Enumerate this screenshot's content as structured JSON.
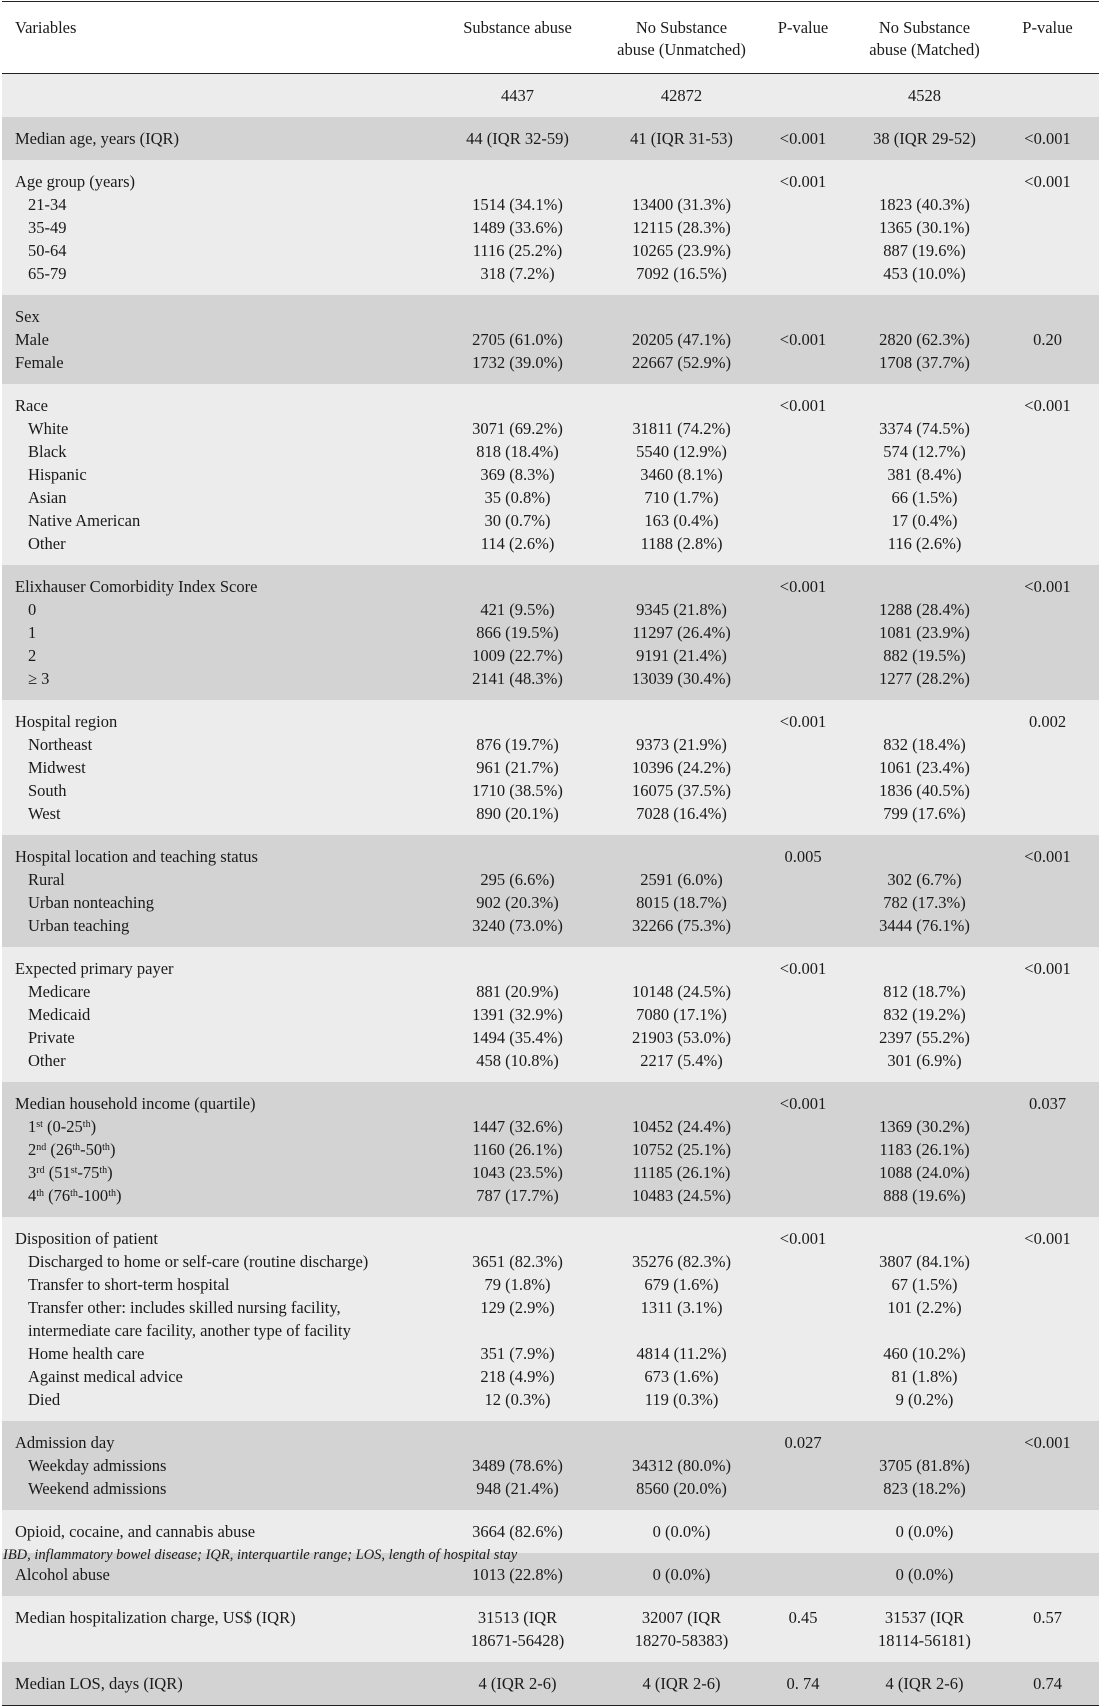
{
  "header": {
    "variables": "Variables",
    "sa": "Substance abuse",
    "nsu_line1": "No Substance",
    "nsu_line2": "abuse (Unmatched)",
    "p1": "P-value",
    "nsm_line1": "No Substance",
    "nsm_line2": "abuse (Matched)",
    "p2": "P-value"
  },
  "counts": {
    "sa": "4437",
    "nsu": "42872",
    "nsm": "4528"
  },
  "rows": [
    {
      "label": "Median age, years (IQR)",
      "sa": "44 (IQR 32-59)",
      "nsu": "41 (IQR 31-53)",
      "p1": "<0.001",
      "nsm": "38 (IQR 29-52)",
      "p2": "<0.001"
    },
    {
      "label": "Age group (years)",
      "sa": "",
      "nsu": "",
      "p1": "<0.001",
      "nsm": "",
      "p2": "<0.001"
    },
    {
      "label": "21-34",
      "sa": "1514 (34.1%)",
      "nsu": "13400 (31.3%)",
      "p1": "",
      "nsm": "1823 (40.3%)",
      "p2": ""
    },
    {
      "label": "35-49",
      "sa": "1489 (33.6%)",
      "nsu": "12115 (28.3%)",
      "p1": "",
      "nsm": "1365 (30.1%)",
      "p2": ""
    },
    {
      "label": "50-64",
      "sa": "1116 (25.2%)",
      "nsu": "10265 (23.9%)",
      "p1": "",
      "nsm": "887 (19.6%)",
      "p2": ""
    },
    {
      "label": "65-79",
      "sa": "318 (7.2%)",
      "nsu": "7092 (16.5%)",
      "p1": "",
      "nsm": "453 (10.0%)",
      "p2": ""
    },
    {
      "label": "Sex",
      "sa": "",
      "nsu": "",
      "p1": "",
      "nsm": "",
      "p2": ""
    },
    {
      "label": "Male",
      "sa": "2705 (61.0%)",
      "nsu": "20205 (47.1%)",
      "p1": "<0.001",
      "nsm": "2820 (62.3%)",
      "p2": "0.20"
    },
    {
      "label": "Female",
      "sa": "1732 (39.0%)",
      "nsu": "22667 (52.9%)",
      "p1": "",
      "nsm": "1708 (37.7%)",
      "p2": ""
    },
    {
      "label": "Race",
      "sa": "",
      "nsu": "",
      "p1": "<0.001",
      "nsm": "",
      "p2": "<0.001"
    },
    {
      "label": "White",
      "sa": "3071 (69.2%)",
      "nsu": "31811 (74.2%)",
      "p1": "",
      "nsm": "3374 (74.5%)",
      "p2": ""
    },
    {
      "label": "Black",
      "sa": "818 (18.4%)",
      "nsu": "5540 (12.9%)",
      "p1": "",
      "nsm": "574 (12.7%)",
      "p2": ""
    },
    {
      "label": "Hispanic",
      "sa": "369 (8.3%)",
      "nsu": "3460 (8.1%)",
      "p1": "",
      "nsm": "381 (8.4%)",
      "p2": ""
    },
    {
      "label": "Asian",
      "sa": "35 (0.8%)",
      "nsu": "710 (1.7%)",
      "p1": "",
      "nsm": "66 (1.5%)",
      "p2": ""
    },
    {
      "label": "Native American",
      "sa": "30 (0.7%)",
      "nsu": "163 (0.4%)",
      "p1": "",
      "nsm": "17 (0.4%)",
      "p2": ""
    },
    {
      "label": "Other",
      "sa": "114 (2.6%)",
      "nsu": "1188 (2.8%)",
      "p1": "",
      "nsm": "116 (2.6%)",
      "p2": ""
    },
    {
      "label": "Elixhauser Comorbidity Index Score",
      "sa": "",
      "nsu": "",
      "p1": "<0.001",
      "nsm": "",
      "p2": "<0.001"
    },
    {
      "label": "0",
      "sa": "421 (9.5%)",
      "nsu": "9345 (21.8%)",
      "p1": "",
      "nsm": "1288 (28.4%)",
      "p2": ""
    },
    {
      "label": "1",
      "sa": "866 (19.5%)",
      "nsu": "11297 (26.4%)",
      "p1": "",
      "nsm": "1081 (23.9%)",
      "p2": ""
    },
    {
      "label": "2",
      "sa": "1009 (22.7%)",
      "nsu": "9191 (21.4%)",
      "p1": "",
      "nsm": "882 (19.5%)",
      "p2": ""
    },
    {
      "label": "≥ 3",
      "sa": "2141 (48.3%)",
      "nsu": "13039 (30.4%)",
      "p1": "",
      "nsm": "1277 (28.2%)",
      "p2": ""
    },
    {
      "label": "Hospital region",
      "sa": "",
      "nsu": "",
      "p1": "<0.001",
      "nsm": "",
      "p2": "0.002"
    },
    {
      "label": "Northeast",
      "sa": "876 (19.7%)",
      "nsu": "9373 (21.9%)",
      "p1": "",
      "nsm": "832 (18.4%)",
      "p2": ""
    },
    {
      "label": "Midwest",
      "sa": "961 (21.7%)",
      "nsu": "10396 (24.2%)",
      "p1": "",
      "nsm": "1061 (23.4%)",
      "p2": ""
    },
    {
      "label": "South",
      "sa": "1710 (38.5%)",
      "nsu": "16075 (37.5%)",
      "p1": "",
      "nsm": "1836 (40.5%)",
      "p2": ""
    },
    {
      "label": "West",
      "sa": "890 (20.1%)",
      "nsu": "7028 (16.4%)",
      "p1": "",
      "nsm": "799 (17.6%)",
      "p2": ""
    },
    {
      "label": "Hospital location and teaching status",
      "sa": "",
      "nsu": "",
      "p1": "0.005",
      "nsm": "",
      "p2": "<0.001"
    },
    {
      "label": "Rural",
      "sa": "295 (6.6%)",
      "nsu": "2591 (6.0%)",
      "p1": "",
      "nsm": "302 (6.7%)",
      "p2": ""
    },
    {
      "label": "Urban nonteaching",
      "sa": "902 (20.3%)",
      "nsu": "8015 (18.7%)",
      "p1": "",
      "nsm": "782 (17.3%)",
      "p2": ""
    },
    {
      "label": "Urban teaching",
      "sa": "3240 (73.0%)",
      "nsu": "32266 (75.3%)",
      "p1": "",
      "nsm": "3444 (76.1%)",
      "p2": ""
    },
    {
      "label": "Expected primary payer",
      "sa": "",
      "nsu": "",
      "p1": "<0.001",
      "nsm": "",
      "p2": "<0.001"
    },
    {
      "label": "Medicare",
      "sa": "881 (20.9%)",
      "nsu": "10148 (24.5%)",
      "p1": "",
      "nsm": "812 (18.7%)",
      "p2": ""
    },
    {
      "label": "Medicaid",
      "sa": "1391 (32.9%)",
      "nsu": "7080 (17.1%)",
      "p1": "",
      "nsm": "832 (19.2%)",
      "p2": ""
    },
    {
      "label": "Private",
      "sa": "1494 (35.4%)",
      "nsu": "21903 (53.0%)",
      "p1": "",
      "nsm": "2397 (55.2%)",
      "p2": ""
    },
    {
      "label": "Other",
      "sa": "458 (10.8%)",
      "nsu": "2217 (5.4%)",
      "p1": "",
      "nsm": "301 (6.9%)",
      "p2": ""
    },
    {
      "label": "Median household income (quartile)",
      "sa": "",
      "nsu": "",
      "p1": "<0.001",
      "nsm": "",
      "p2": "0.037"
    },
    {
      "label": "1st (0-25th)",
      "sa": "1447 (32.6%)",
      "nsu": "10452 (24.4%)",
      "p1": "",
      "nsm": "1369 (30.2%)",
      "p2": ""
    },
    {
      "label": "2nd (26th-50th)",
      "sa": "1160 (26.1%)",
      "nsu": "10752 (25.1%)",
      "p1": "",
      "nsm": "1183 (26.1%)",
      "p2": ""
    },
    {
      "label": "3rd (51st-75th)",
      "sa": "1043 (23.5%)",
      "nsu": "11185 (26.1%)",
      "p1": "",
      "nsm": "1088 (24.0%)",
      "p2": ""
    },
    {
      "label": "4th (76th-100th)",
      "sa": "787 (17.7%)",
      "nsu": "10483 (24.5%)",
      "p1": "",
      "nsm": "888 (19.6%)",
      "p2": ""
    },
    {
      "label": "Disposition of patient",
      "sa": "",
      "nsu": "",
      "p1": "<0.001",
      "nsm": "",
      "p2": "<0.001"
    },
    {
      "label": "Discharged to home or self-care (routine discharge)",
      "sa": "3651 (82.3%)",
      "nsu": "35276 (82.3%)",
      "p1": "",
      "nsm": "3807 (84.1%)",
      "p2": ""
    },
    {
      "label": "Transfer to short-term hospital",
      "sa": "79 (1.8%)",
      "nsu": "679 (1.6%)",
      "p1": "",
      "nsm": "67 (1.5%)",
      "p2": ""
    },
    {
      "label": "Transfer other: includes skilled nursing facility,",
      "sa": "129 (2.9%)",
      "nsu": "1311 (3.1%)",
      "p1": "",
      "nsm": "101 (2.2%)",
      "p2": ""
    },
    {
      "label": "intermediate care facility, another type of facility",
      "sa": "",
      "nsu": "",
      "p1": "",
      "nsm": "",
      "p2": ""
    },
    {
      "label": "Home health care",
      "sa": "351 (7.9%)",
      "nsu": "4814 (11.2%)",
      "p1": "",
      "nsm": "460 (10.2%)",
      "p2": ""
    },
    {
      "label": "Against medical advice",
      "sa": "218 (4.9%)",
      "nsu": "673 (1.6%)",
      "p1": "",
      "nsm": "81 (1.8%)",
      "p2": ""
    },
    {
      "label": "Died",
      "sa": "12 (0.3%)",
      "nsu": "119 (0.3%)",
      "p1": "",
      "nsm": "9 (0.2%)",
      "p2": ""
    },
    {
      "label": "Admission day",
      "sa": "",
      "nsu": "",
      "p1": "0.027",
      "nsm": "",
      "p2": "<0.001"
    },
    {
      "label": "Weekday admissions",
      "sa": "3489 (78.6%)",
      "nsu": "34312 (80.0%)",
      "p1": "",
      "nsm": "3705 (81.8%)",
      "p2": ""
    },
    {
      "label": "Weekend admissions",
      "sa": "948 (21.4%)",
      "nsu": "8560 (20.0%)",
      "p1": "",
      "nsm": "823 (18.2%)",
      "p2": ""
    },
    {
      "label": "Opioid, cocaine, and cannabis abuse",
      "sa": "3664 (82.6%)",
      "nsu": "0 (0.0%)",
      "p1": "",
      "nsm": "0 (0.0%)",
      "p2": ""
    },
    {
      "label": "Alcohol abuse",
      "sa": "1013 (22.8%)",
      "nsu": "0 (0.0%)",
      "p1": "",
      "nsm": "0 (0.0%)",
      "p2": ""
    },
    {
      "label": "Median hospitalization charge, US$ (IQR)",
      "sa": "31513 (IQR",
      "nsu": "32007 (IQR",
      "p1": "0.45",
      "nsm": "31537 (IQR",
      "p2": "0.57"
    },
    {
      "label": "",
      "sa": "18671-56428)",
      "nsu": "18270-58383)",
      "p1": "",
      "nsm": "18114-56181)",
      "p2": ""
    },
    {
      "label": "Median LOS, days (IQR)",
      "sa": "4 (IQR 2-6)",
      "nsu": "4 (IQR 2-6)",
      "p1": "0. 74",
      "nsm": "4 (IQR 2-6)",
      "p2": "0.74"
    }
  ],
  "footnote": "IBD, inflammatory bowel disease; IQR, interquartile range; LOS, length of hospital stay"
}
